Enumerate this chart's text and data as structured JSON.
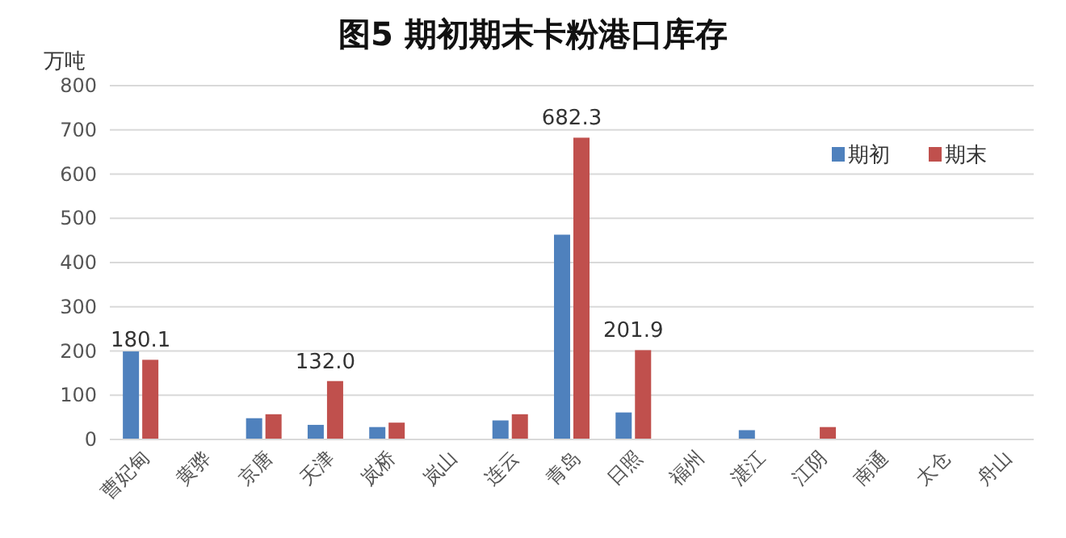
{
  "chart_data": {
    "type": "bar",
    "title": "图5  期初期末卡粉港口库存",
    "ylabel": "万吨",
    "categories": [
      "曹妃甸",
      "黄骅",
      "京唐",
      "天津",
      "岚桥",
      "岚山",
      "连云",
      "青岛",
      "日照",
      "福州",
      "湛江",
      "江阴",
      "南通",
      "太仓",
      "舟山"
    ],
    "series": [
      {
        "name": "期初",
        "color": "#4f81bd",
        "values": [
          199,
          null,
          48,
          33,
          28,
          null,
          43,
          463,
          61,
          null,
          21,
          null,
          null,
          null,
          null
        ]
      },
      {
        "name": "期末",
        "color": "#c0504d",
        "values": [
          180.1,
          null,
          57,
          132.0,
          38,
          null,
          57,
          682.3,
          201.9,
          null,
          null,
          28,
          null,
          null,
          null
        ],
        "value_labels": [
          "180.1",
          null,
          null,
          "132.0",
          null,
          null,
          null,
          "682.3",
          "201.9",
          null,
          null,
          null,
          null,
          null,
          null
        ]
      }
    ],
    "ylim": [
      0,
      800
    ],
    "yticks": [
      0,
      100,
      200,
      300,
      400,
      500,
      600,
      700,
      800
    ],
    "grid": "y",
    "legend": "top right"
  }
}
